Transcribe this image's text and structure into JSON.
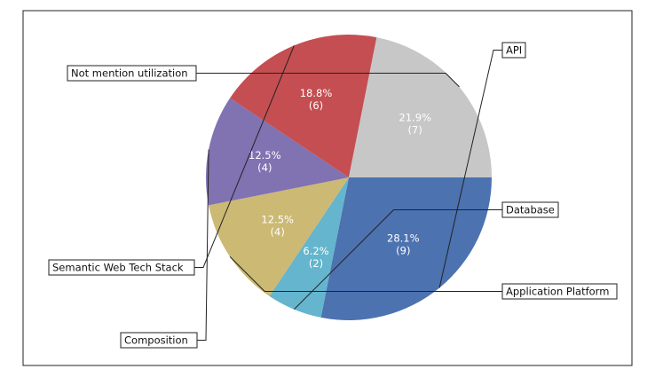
{
  "chart_data": {
    "type": "pie",
    "slices": [
      {
        "label": "API",
        "value": 9,
        "percent": "28.1%",
        "count": "(9)",
        "color": "#4c72b0"
      },
      {
        "label": "Database",
        "value": 2,
        "percent": "6.2%",
        "count": "(2)",
        "color": "#64b5cd"
      },
      {
        "label": "Application Platform",
        "value": 4,
        "percent": "12.5%",
        "count": "(4)",
        "color": "#ccb974"
      },
      {
        "label": "Composition",
        "value": 4,
        "percent": "12.5%",
        "count": "(4)",
        "color": "#8172b2"
      },
      {
        "label": "Semantic Web Tech Stack",
        "value": 6,
        "percent": "18.8%",
        "count": "(6)",
        "color": "#c44e52"
      },
      {
        "label": "Not mention utilization",
        "value": 7,
        "percent": "21.9%",
        "count": "(7)",
        "color": "#c7c7c7"
      }
    ],
    "start_angle_deg": 0,
    "direction": "clockwise",
    "legend": "callouts"
  }
}
